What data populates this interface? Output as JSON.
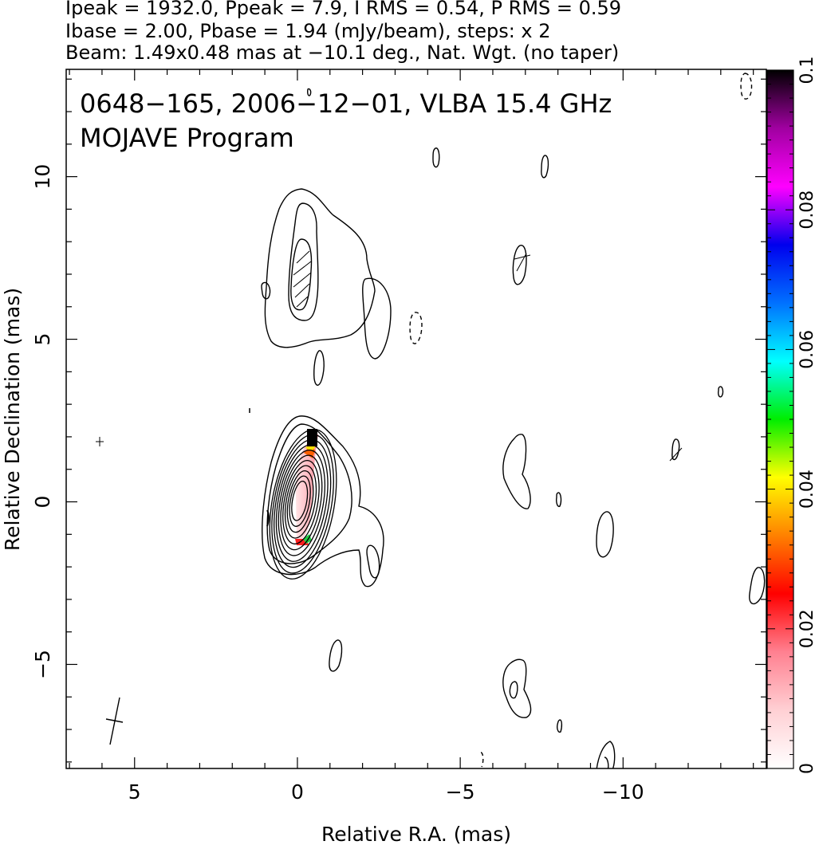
{
  "header": {
    "line1": "Ipeak = 1932.0, Ppeak = 7.9, I RMS = 0.54, P RMS = 0.59",
    "line2": "Ibase = 2.00, Pbase = 1.94 (mJy/beam), steps: x 2",
    "line3": "Beam: 1.49x0.48 mas at −10.1 deg., Nat. Wgt. (no taper)"
  },
  "chart_data": {
    "type": "heatmap",
    "title_line1": "0648−165, 2006−12−01, VLBA 15.4 GHz",
    "title_line2": "MOJAVE Program",
    "xlabel": "Relative R.A. (mas)",
    "ylabel": "Relative Declination (mas)",
    "xlim": [
      7.1,
      -14.4
    ],
    "ylim": [
      -8.2,
      13.3
    ],
    "x_ticks": [
      5,
      0,
      -5,
      -10
    ],
    "x_tick_labels": [
      "5",
      "0",
      "−5",
      "−10"
    ],
    "y_ticks": [
      10,
      5,
      0,
      -5
    ],
    "y_tick_labels": [
      "10",
      "5",
      "0",
      "−5"
    ],
    "colorbar": {
      "min": 0,
      "max": 0.1,
      "ticks": [
        0,
        0.02,
        0.04,
        0.06,
        0.08,
        0.1
      ],
      "tick_labels": [
        "0",
        "0.02",
        "0.04",
        "0.06",
        "0.08",
        "0.1"
      ],
      "colors": [
        "#ffffff",
        "#ffd0d4",
        "#ff8090",
        "#ff0000",
        "#ff8000",
        "#ffff00",
        "#00ee00",
        "#00ffff",
        "#0070ff",
        "#0000ee",
        "#ff00ff",
        "#a000a0",
        "#000000"
      ]
    },
    "core": {
      "ra": 0.0,
      "dec": 0.0,
      "contour_levels": 11
    },
    "jet_features": [
      {
        "ra": 0.1,
        "dec": 7.2,
        "shape": "extended_emission"
      },
      {
        "ra": -2.4,
        "dec": -1.8,
        "shape": "jet_knot"
      }
    ],
    "beam": {
      "major_mas": 1.49,
      "minor_mas": 0.48,
      "pa_deg": -10.1
    }
  }
}
